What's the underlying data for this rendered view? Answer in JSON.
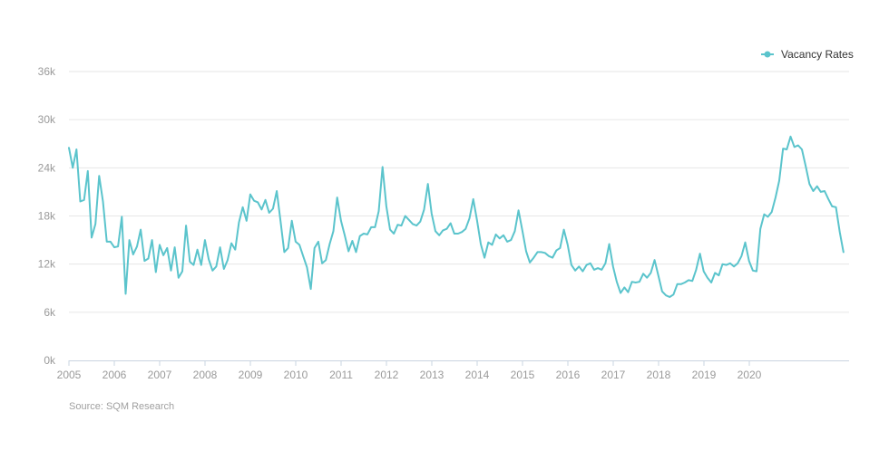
{
  "chart_data": {
    "type": "line",
    "title": "",
    "xlabel": "",
    "ylabel": "",
    "ylim": [
      0,
      36000
    ],
    "y_ticks": [
      0,
      6000,
      12000,
      18000,
      24000,
      30000,
      36000
    ],
    "y_tick_labels": [
      "0k",
      "6k",
      "12k",
      "18k",
      "24k",
      "30k",
      "36k"
    ],
    "x_range": [
      2005.0,
      2022.2
    ],
    "x_ticks": [
      2005,
      2006,
      2007,
      2008,
      2009,
      2010,
      2011,
      2012,
      2013,
      2014,
      2015,
      2016,
      2017,
      2018,
      2019,
      2020
    ],
    "x_tick_labels": [
      "2005",
      "2006",
      "2007",
      "2008",
      "2009",
      "2010",
      "2011",
      "2012",
      "2013",
      "2014",
      "2015",
      "2016",
      "2017",
      "2018",
      "2019",
      "2020"
    ],
    "grid": true,
    "legend_position": "top-right",
    "series": [
      {
        "name": "Vacancy Rates",
        "color": "#5bc4cc",
        "x_start": 2005.0,
        "x_step": 0.0833,
        "values": [
          26500,
          24000,
          26300,
          19800,
          20000,
          23600,
          15300,
          17000,
          23000,
          19800,
          14800,
          14800,
          14100,
          14200,
          17900,
          8300,
          15000,
          13200,
          14200,
          16300,
          12400,
          12700,
          15000,
          11000,
          14400,
          13100,
          14000,
          11200,
          14100,
          10300,
          11100,
          16800,
          12300,
          11900,
          13800,
          11900,
          15000,
          12600,
          11200,
          11700,
          14100,
          11400,
          12500,
          14600,
          13800,
          17200,
          19100,
          17400,
          20700,
          19900,
          19700,
          18800,
          20000,
          18400,
          18900,
          21100,
          17400,
          13500,
          14000,
          17400,
          14800,
          14400,
          13000,
          11600,
          8900,
          14000,
          14800,
          12100,
          12500,
          14500,
          16100,
          20300,
          17400,
          15600,
          13600,
          14900,
          13500,
          15500,
          15800,
          15700,
          16600,
          16600,
          18600,
          24100,
          19200,
          16300,
          15800,
          16900,
          16800,
          18000,
          17500,
          17000,
          16800,
          17300,
          18800,
          22000,
          18300,
          16100,
          15600,
          16200,
          16400,
          17100,
          15800,
          15800,
          16000,
          16400,
          17700,
          20100,
          17500,
          14500,
          12800,
          14700,
          14400,
          15700,
          15200,
          15600,
          14800,
          15000,
          16100,
          18700,
          16200,
          13600,
          12200,
          12800,
          13500,
          13500,
          13400,
          13000,
          12800,
          13700,
          14000,
          16300,
          14400,
          11900,
          11200,
          11700,
          11100,
          11900,
          12100,
          11300,
          11500,
          11300,
          12100,
          14500,
          11700,
          9800,
          8400,
          9100,
          8500,
          9800,
          9700,
          9800,
          10800,
          10300,
          10900,
          12500,
          10600,
          8600,
          8100,
          7900,
          8200,
          9500,
          9500,
          9700,
          10000,
          9900,
          11300,
          13300,
          11100,
          10300,
          9700,
          10900,
          10600,
          12000,
          11900,
          12100,
          11700,
          12100,
          13000,
          14700,
          12400,
          11200,
          11100,
          16400,
          18200,
          17900,
          18500,
          20300,
          22400,
          26400,
          26300,
          27900,
          26600,
          26800,
          26300,
          24200,
          22000,
          21100,
          21700,
          21000,
          21100,
          20100,
          19200,
          19100,
          16000,
          13500
        ]
      }
    ]
  },
  "legend": {
    "label": "Vacancy Rates"
  },
  "footer": {
    "source": "Source: SQM Research"
  }
}
